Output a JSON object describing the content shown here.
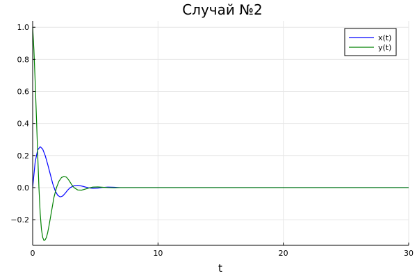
{
  "chart_data": {
    "type": "line",
    "title": "Случай №2",
    "xlabel": "t",
    "ylabel": "",
    "xlim": [
      0,
      30
    ],
    "ylim": [
      -0.36,
      1.04
    ],
    "xticks": [
      0,
      10,
      20,
      30
    ],
    "yticks": [
      -0.2,
      0.0,
      0.2,
      0.4,
      0.6,
      0.8,
      1.0
    ],
    "xtick_labels": [
      "0",
      "10",
      "20",
      "30"
    ],
    "ytick_labels": [
      "−0.2",
      "0.0",
      "0.2",
      "0.4",
      "0.6",
      "0.8",
      "1.0"
    ],
    "grid": true,
    "legend": "top-right",
    "series": [
      {
        "name": "x(t)",
        "color": "#0000ff",
        "x": [
          0,
          0.2,
          0.4,
          0.6,
          0.8,
          1.0,
          1.2,
          1.4,
          1.6,
          1.8,
          2.0,
          2.2,
          2.4,
          2.6,
          2.8,
          3.0,
          3.3,
          3.6,
          3.9,
          4.2,
          4.5,
          4.8,
          5.2,
          5.6,
          6.0,
          6.5,
          7.0,
          8.0,
          9.0,
          10,
          15,
          20,
          25,
          30
        ],
        "y": [
          0,
          0.16,
          0.235,
          0.255,
          0.24,
          0.2,
          0.145,
          0.085,
          0.025,
          -0.02,
          -0.048,
          -0.058,
          -0.052,
          -0.035,
          -0.015,
          0.0,
          0.012,
          0.014,
          0.01,
          0.004,
          -0.002,
          -0.004,
          -0.003,
          0.001,
          0.003,
          0.002,
          0.0,
          0.0,
          0.0,
          0.0,
          0.0,
          0.0,
          0.0,
          0.0
        ]
      },
      {
        "name": "y(t)",
        "color": "#008000",
        "x": [
          0,
          0.1,
          0.2,
          0.3,
          0.4,
          0.5,
          0.6,
          0.7,
          0.8,
          0.9,
          1.0,
          1.1,
          1.2,
          1.3,
          1.5,
          1.7,
          1.9,
          2.1,
          2.3,
          2.5,
          2.7,
          2.9,
          3.1,
          3.3,
          3.6,
          3.9,
          4.2,
          4.5,
          4.8,
          5.2,
          5.6,
          6.0,
          6.5,
          7.0,
          8.0,
          10,
          15,
          20,
          25,
          30
        ],
        "y": [
          1.0,
          0.86,
          0.66,
          0.44,
          0.21,
          0.0,
          -0.16,
          -0.26,
          -0.31,
          -0.33,
          -0.325,
          -0.31,
          -0.28,
          -0.24,
          -0.15,
          -0.06,
          0.0,
          0.04,
          0.063,
          0.07,
          0.065,
          0.045,
          0.02,
          0.0,
          -0.015,
          -0.016,
          -0.009,
          -0.002,
          0.003,
          0.004,
          0.002,
          0.0,
          -0.001,
          0.0,
          0.0,
          0.0,
          0.0,
          0.0,
          0.0,
          0.0
        ]
      }
    ]
  }
}
